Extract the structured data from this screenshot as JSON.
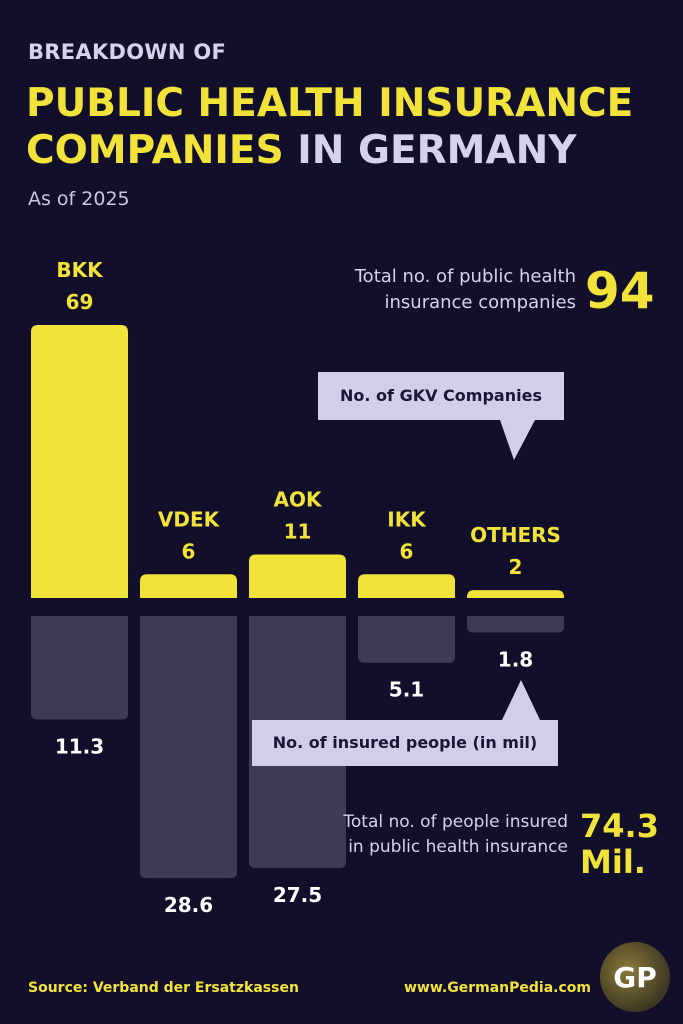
{
  "header": {
    "kicker": "BREAKDOWN OF",
    "title_highlight_line1": "PUBLIC HEALTH INSURANCE",
    "title_highlight_line2": "COMPANIES",
    "title_rest": " IN GERMANY",
    "subtitle": "As of 2025"
  },
  "totals": {
    "companies_label": "Total no. of public health insurance companies",
    "companies_value": "94",
    "insured_label": "Total no. of people insured in public health insurance",
    "insured_value_number": "74.3",
    "insured_value_unit": "Mil."
  },
  "callouts": {
    "companies": "No. of GKV Companies",
    "insured": "No. of insured people (in mil)"
  },
  "footer": {
    "source": "Source: Verband der Ersatzkassen",
    "website": "www.GermanPedia.com",
    "logo_text": "GP"
  },
  "colors": {
    "background": "#120f2a",
    "companies_bar": "#f2e33a",
    "insured_bar": "#3d3a51",
    "text_accent": "#f2e33a"
  },
  "chart_data": {
    "type": "bar",
    "categories": [
      "BKK",
      "VDEK",
      "AOK",
      "IKK",
      "OTHERS"
    ],
    "series": [
      {
        "name": "No. of GKV Companies",
        "values": [
          69,
          6,
          11,
          6,
          2
        ]
      },
      {
        "name": "No. of insured people (in mil)",
        "values": [
          11.3,
          28.6,
          27.5,
          5.1,
          1.8
        ]
      }
    ],
    "value_labels_companies": [
      "69",
      "6",
      "11",
      "6",
      "2"
    ],
    "value_labels_insured": [
      "11.3",
      "28.6",
      "27.5",
      "5.1",
      "1.8"
    ],
    "layout": "diverging bars: companies upward, insured people downward",
    "grid": false
  }
}
